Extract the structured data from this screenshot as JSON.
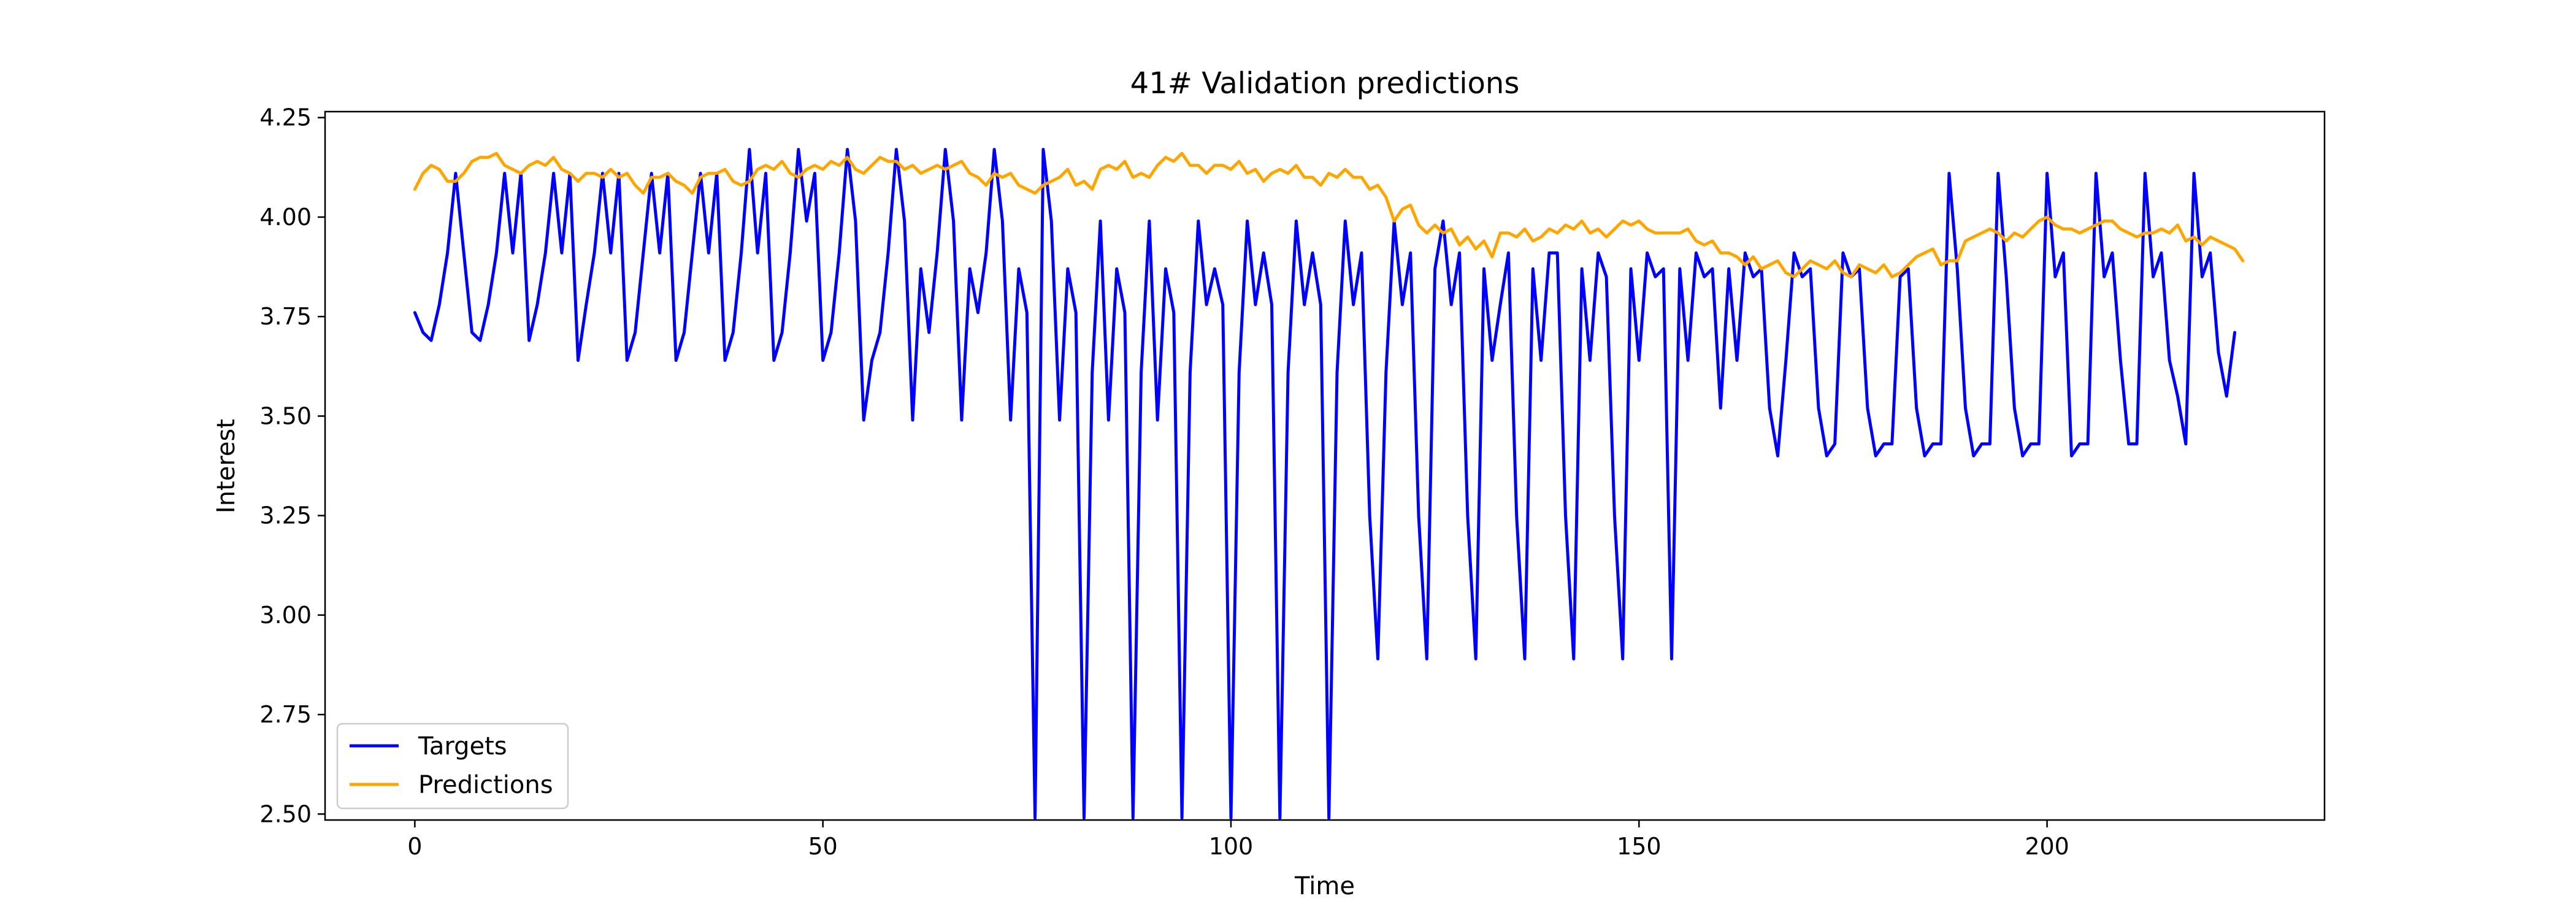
{
  "chart_data": {
    "type": "line",
    "title": "41# Validation predictions",
    "xlabel": "Time",
    "ylabel": "Interest",
    "xlim": [
      -11,
      234
    ],
    "ylim": [
      2.485,
      4.265
    ],
    "xticks": [
      0,
      50,
      100,
      150,
      200
    ],
    "yticks": [
      2.5,
      2.75,
      3.0,
      3.25,
      3.5,
      3.75,
      4.0,
      4.25
    ],
    "ytick_labels": [
      "2.50",
      "2.75",
      "3.00",
      "3.25",
      "3.50",
      "3.75",
      "4.00",
      "4.25"
    ],
    "grid": false,
    "legend": "lower-left",
    "series": [
      {
        "name": "Targets",
        "color": "#0000ff",
        "values": [
          3.76,
          3.71,
          3.69,
          3.78,
          3.91,
          4.11,
          3.91,
          3.71,
          3.69,
          3.78,
          3.91,
          4.11,
          3.91,
          4.11,
          3.69,
          3.78,
          3.91,
          4.11,
          3.91,
          4.11,
          3.64,
          3.78,
          3.91,
          4.11,
          3.91,
          4.11,
          3.64,
          3.71,
          3.91,
          4.11,
          3.91,
          4.11,
          3.64,
          3.71,
          3.91,
          4.11,
          3.91,
          4.11,
          3.64,
          3.71,
          3.91,
          4.17,
          3.91,
          4.11,
          3.64,
          3.71,
          3.91,
          4.17,
          3.99,
          4.11,
          3.64,
          3.71,
          3.91,
          4.17,
          3.99,
          3.49,
          3.64,
          3.71,
          3.91,
          4.17,
          3.99,
          3.49,
          3.87,
          3.71,
          3.91,
          4.17,
          3.99,
          3.49,
          3.87,
          3.76,
          3.91,
          4.17,
          3.99,
          3.49,
          3.87,
          3.76,
          2.49,
          4.17,
          3.99,
          3.49,
          3.87,
          3.76,
          2.49,
          3.61,
          3.99,
          3.49,
          3.87,
          3.76,
          2.49,
          3.61,
          3.99,
          3.49,
          3.87,
          3.76,
          2.49,
          3.61,
          3.99,
          3.78,
          3.87,
          3.78,
          2.49,
          3.61,
          3.99,
          3.78,
          3.91,
          3.78,
          2.49,
          3.61,
          3.99,
          3.78,
          3.91,
          3.78,
          2.49,
          3.61,
          3.99,
          3.78,
          3.91,
          3.25,
          2.89,
          3.61,
          3.99,
          3.78,
          3.91,
          3.25,
          2.89,
          3.87,
          3.99,
          3.78,
          3.91,
          3.25,
          2.89,
          3.87,
          3.64,
          3.78,
          3.91,
          3.25,
          2.89,
          3.87,
          3.64,
          3.91,
          3.91,
          3.25,
          2.89,
          3.87,
          3.64,
          3.91,
          3.85,
          3.25,
          2.89,
          3.87,
          3.64,
          3.91,
          3.85,
          3.87,
          2.89,
          3.87,
          3.64,
          3.91,
          3.85,
          3.87,
          3.52,
          3.87,
          3.64,
          3.91,
          3.85,
          3.87,
          3.52,
          3.4,
          3.64,
          3.91,
          3.85,
          3.87,
          3.52,
          3.4,
          3.43,
          3.91,
          3.85,
          3.87,
          3.52,
          3.4,
          3.43,
          3.43,
          3.85,
          3.87,
          3.52,
          3.4,
          3.43,
          3.43,
          4.11,
          3.87,
          3.52,
          3.4,
          3.43,
          3.43,
          4.11,
          3.85,
          3.52,
          3.4,
          3.43,
          3.43,
          4.11,
          3.85,
          3.91,
          3.4,
          3.43,
          3.43,
          4.11,
          3.85,
          3.91,
          3.64,
          3.43,
          3.43,
          4.11,
          3.85,
          3.91,
          3.64,
          3.55,
          3.43,
          4.11,
          3.85,
          3.91,
          3.66,
          3.55,
          3.71
        ]
      },
      {
        "name": "Predictions",
        "color": "#ffa500",
        "values": [
          4.07,
          4.11,
          4.13,
          4.12,
          4.09,
          4.09,
          4.11,
          4.14,
          4.15,
          4.15,
          4.16,
          4.13,
          4.12,
          4.11,
          4.13,
          4.14,
          4.13,
          4.15,
          4.12,
          4.11,
          4.09,
          4.11,
          4.11,
          4.1,
          4.12,
          4.1,
          4.11,
          4.08,
          4.06,
          4.1,
          4.1,
          4.11,
          4.09,
          4.08,
          4.06,
          4.1,
          4.11,
          4.11,
          4.12,
          4.09,
          4.08,
          4.09,
          4.12,
          4.13,
          4.12,
          4.14,
          4.11,
          4.1,
          4.12,
          4.13,
          4.12,
          4.14,
          4.13,
          4.15,
          4.12,
          4.11,
          4.13,
          4.15,
          4.14,
          4.14,
          4.12,
          4.13,
          4.11,
          4.12,
          4.13,
          4.12,
          4.13,
          4.14,
          4.11,
          4.1,
          4.08,
          4.11,
          4.1,
          4.11,
          4.08,
          4.07,
          4.06,
          4.08,
          4.09,
          4.1,
          4.12,
          4.08,
          4.09,
          4.07,
          4.12,
          4.13,
          4.12,
          4.14,
          4.1,
          4.11,
          4.1,
          4.13,
          4.15,
          4.14,
          4.16,
          4.13,
          4.13,
          4.11,
          4.13,
          4.13,
          4.12,
          4.14,
          4.11,
          4.12,
          4.09,
          4.11,
          4.12,
          4.11,
          4.13,
          4.1,
          4.1,
          4.08,
          4.11,
          4.1,
          4.12,
          4.1,
          4.1,
          4.07,
          4.08,
          4.05,
          3.99,
          4.02,
          4.03,
          3.98,
          3.96,
          3.98,
          3.96,
          3.97,
          3.93,
          3.95,
          3.92,
          3.94,
          3.9,
          3.96,
          3.96,
          3.95,
          3.97,
          3.94,
          3.95,
          3.97,
          3.96,
          3.98,
          3.97,
          3.99,
          3.96,
          3.97,
          3.95,
          3.97,
          3.99,
          3.98,
          3.99,
          3.97,
          3.96,
          3.96,
          3.96,
          3.96,
          3.97,
          3.94,
          3.93,
          3.94,
          3.91,
          3.91,
          3.9,
          3.88,
          3.9,
          3.87,
          3.88,
          3.89,
          3.86,
          3.85,
          3.87,
          3.89,
          3.88,
          3.87,
          3.89,
          3.86,
          3.85,
          3.88,
          3.87,
          3.86,
          3.88,
          3.85,
          3.86,
          3.88,
          3.9,
          3.91,
          3.92,
          3.88,
          3.89,
          3.89,
          3.94,
          3.95,
          3.96,
          3.97,
          3.96,
          3.94,
          3.96,
          3.95,
          3.97,
          3.99,
          4.0,
          3.98,
          3.97,
          3.97,
          3.96,
          3.97,
          3.98,
          3.99,
          3.99,
          3.97,
          3.96,
          3.95,
          3.96,
          3.96,
          3.97,
          3.96,
          3.98,
          3.94,
          3.95,
          3.93,
          3.95,
          3.94,
          3.93,
          3.92,
          3.89
        ]
      }
    ]
  }
}
